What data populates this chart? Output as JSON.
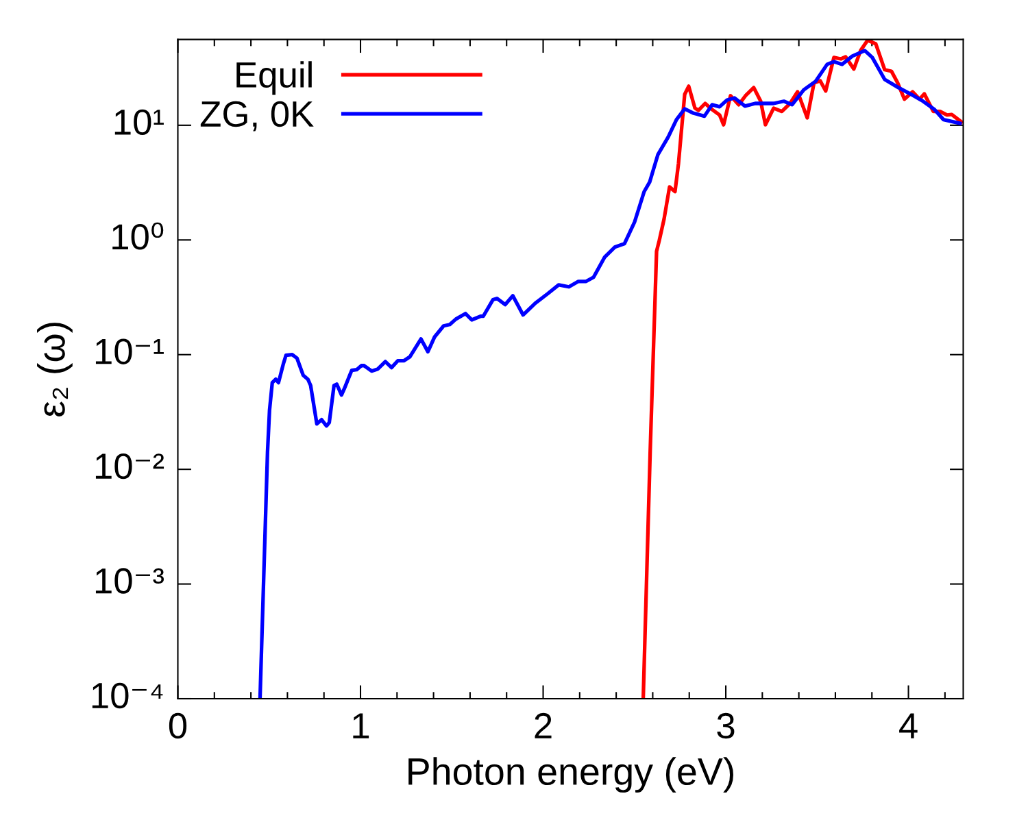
{
  "chart_data": {
    "type": "line",
    "xlabel": "Photon energy (eV)",
    "ylabel": "ε₂ (ω)",
    "log": "y",
    "legend": "top left",
    "grid": false,
    "xlim": [
      0,
      4.3
    ],
    "xticks": [
      0,
      1,
      2,
      3,
      4
    ],
    "ylim": [
      0.0001,
      56
    ],
    "yticks": [
      {
        "value": 0.0001,
        "label": "10⁻⁴"
      },
      {
        "value": 0.001,
        "label": "10⁻³"
      },
      {
        "value": 0.01,
        "label": "10⁻²"
      },
      {
        "value": 0.1,
        "label": "10⁻¹"
      },
      {
        "value": 1,
        "label": "10⁰"
      },
      {
        "value": 10,
        "label": "10¹"
      }
    ],
    "series": [
      {
        "name": "Equil",
        "color": "#ff0000",
        "x": [
          2.548,
          2.586,
          2.621,
          2.636,
          2.662,
          2.692,
          2.722,
          2.741,
          2.775,
          2.797,
          2.831,
          2.85,
          2.887,
          2.925,
          2.966,
          2.988,
          3.026,
          3.071,
          3.108,
          3.153,
          3.191,
          3.217,
          3.262,
          3.307,
          3.352,
          3.393,
          3.446,
          3.483,
          3.517,
          3.547,
          3.592,
          3.63,
          3.656,
          3.701,
          3.738,
          3.776,
          3.821,
          3.87,
          3.907,
          3.941,
          3.978,
          4.023,
          4.061,
          4.087,
          4.136,
          4.173,
          4.211,
          4.237,
          4.29
        ],
        "values": [
          0.0001,
          0.0142,
          0.797,
          0.993,
          1.52,
          2.9,
          2.64,
          4.63,
          18.6,
          21.9,
          14.1,
          13.5,
          15.5,
          13.7,
          12.3,
          10.1,
          18.1,
          15.1,
          18.1,
          21.3,
          16.2,
          10.1,
          14.1,
          13.2,
          15.5,
          19.6,
          11.6,
          23.4,
          24.4,
          19.9,
          39.0,
          37.9,
          39.5,
          30.9,
          44.8,
          55,
          51.3,
          30.5,
          29.6,
          23.4,
          16.9,
          19.6,
          16.9,
          18.8,
          13.2,
          13.2,
          12.3,
          12.4,
          10.7
        ]
      },
      {
        "name": "ZG, 0K",
        "color": "#0000ff",
        "x": [
          0.45,
          0.491,
          0.502,
          0.517,
          0.536,
          0.551,
          0.577,
          0.592,
          0.626,
          0.652,
          0.686,
          0.712,
          0.727,
          0.761,
          0.787,
          0.814,
          0.829,
          0.855,
          0.87,
          0.896,
          0.911,
          0.952,
          0.979,
          1.005,
          1.02,
          1.061,
          1.095,
          1.136,
          1.17,
          1.204,
          1.237,
          1.271,
          1.331,
          1.369,
          1.406,
          1.455,
          1.489,
          1.522,
          1.575,
          1.609,
          1.657,
          1.672,
          1.725,
          1.747,
          1.792,
          1.834,
          1.89,
          1.957,
          2.025,
          2.085,
          2.141,
          2.193,
          2.235,
          2.276,
          2.336,
          2.392,
          2.445,
          2.501,
          2.553,
          2.583,
          2.628,
          2.685,
          2.73,
          2.775,
          2.82,
          2.883,
          2.925,
          2.966,
          3.007,
          3.048,
          3.105,
          3.161,
          3.262,
          3.318,
          3.363,
          3.427,
          3.491,
          3.555,
          3.592,
          3.637,
          3.693,
          3.761,
          3.802,
          3.87,
          3.945,
          4.023,
          4.08,
          4.143,
          4.192,
          4.282
        ],
        "values": [
          0.0001,
          0.0142,
          0.0328,
          0.0569,
          0.061,
          0.057,
          0.0824,
          0.0986,
          0.1,
          0.0933,
          0.0662,
          0.061,
          0.0538,
          0.0249,
          0.0271,
          0.0239,
          0.0256,
          0.0538,
          0.0553,
          0.0445,
          0.0503,
          0.0729,
          0.0739,
          0.0802,
          0.0802,
          0.0719,
          0.075,
          0.0871,
          0.0771,
          0.0884,
          0.0884,
          0.096,
          0.137,
          0.106,
          0.143,
          0.178,
          0.183,
          0.204,
          0.228,
          0.201,
          0.216,
          0.216,
          0.301,
          0.309,
          0.273,
          0.326,
          0.222,
          0.281,
          0.34,
          0.406,
          0.39,
          0.435,
          0.435,
          0.473,
          0.705,
          0.865,
          0.927,
          1.44,
          2.64,
          3.19,
          5.53,
          7.92,
          11.2,
          13.9,
          12.8,
          12.0,
          15.1,
          14.5,
          16.6,
          17.3,
          14.7,
          15.5,
          15.5,
          16.2,
          15.1,
          20.4,
          24.1,
          34.0,
          35.9,
          34.0,
          40.1,
          44.8,
          39.0,
          25.1,
          21.3,
          18.3,
          16.2,
          13.7,
          11.2,
          10.4
        ]
      }
    ]
  }
}
